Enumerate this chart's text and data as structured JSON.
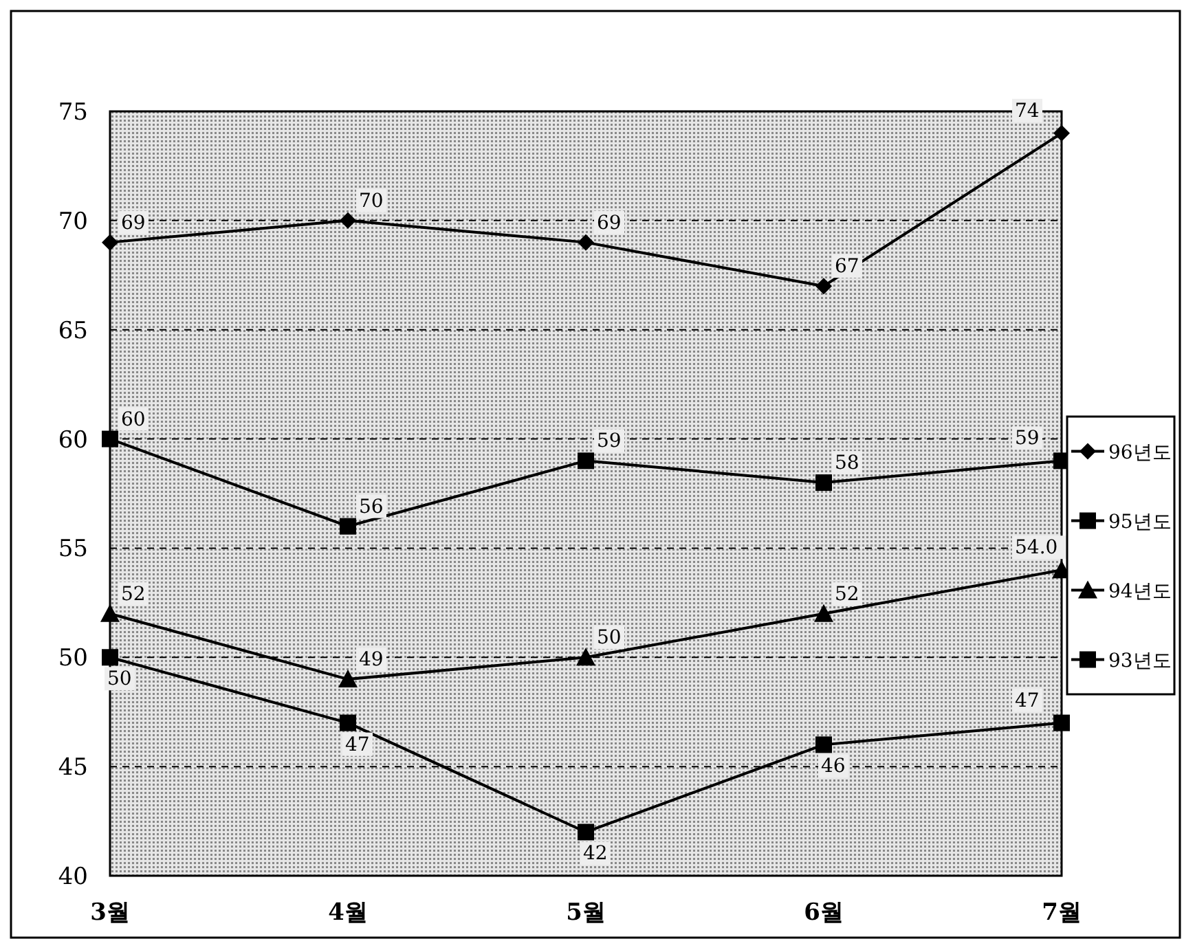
{
  "chart_data": {
    "type": "line",
    "categories": [
      "3월",
      "4월",
      "5월",
      "6월",
      "7월"
    ],
    "series": [
      {
        "name": "96년도",
        "color": "#000000",
        "marker": "diamond",
        "values": [
          69,
          70,
          69,
          67,
          74
        ],
        "value_labels": [
          "69",
          "70",
          "69",
          "67",
          "74"
        ]
      },
      {
        "name": "95년도",
        "color": "#000000",
        "marker": "square",
        "values": [
          60,
          56,
          59,
          58,
          59
        ],
        "value_labels": [
          "60",
          "56",
          "59",
          "58",
          "59"
        ]
      },
      {
        "name": "94년도",
        "color": "#000000",
        "marker": "triangle",
        "values": [
          52,
          49,
          50,
          52,
          54
        ],
        "value_labels": [
          "52",
          "49",
          "50",
          "52",
          "54.0"
        ]
      },
      {
        "name": "93년도",
        "color": "#000000",
        "marker": "square",
        "values": [
          50,
          47,
          42,
          46,
          47
        ],
        "value_labels": [
          "50",
          "47",
          "42",
          "46",
          "47"
        ]
      }
    ],
    "ylim": [
      40,
      75
    ],
    "yticks": [
      40,
      45,
      50,
      55,
      60,
      65,
      70,
      75
    ],
    "grid": "y",
    "legend": "right",
    "line_style": "solid"
  }
}
